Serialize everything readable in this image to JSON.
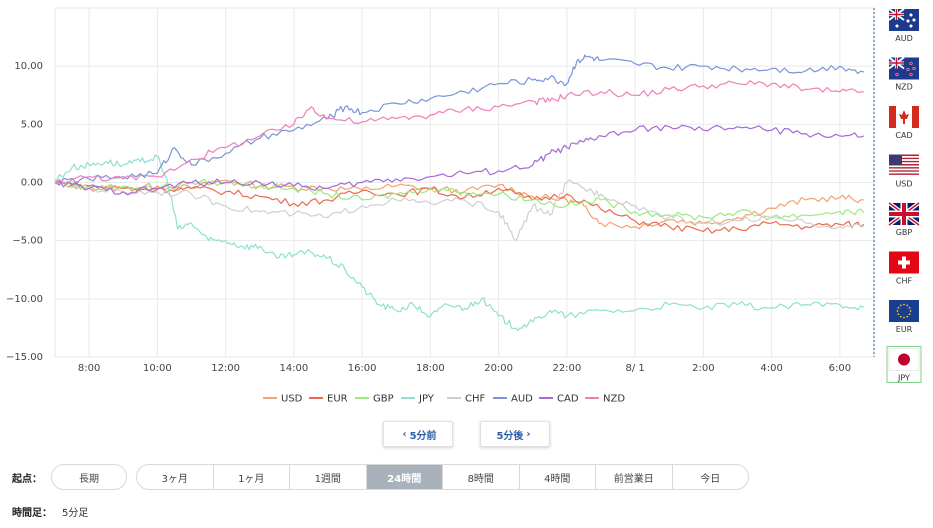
{
  "chart_data": {
    "type": "line",
    "ylim": [
      -15,
      15
    ],
    "yticks": [
      10,
      5,
      0,
      -5,
      -10,
      -15
    ],
    "ytick_labels": [
      "10.00",
      "5.00",
      "0.00",
      "−5.00",
      "−10.00",
      "−15.00"
    ],
    "xticks": [
      1,
      3,
      5,
      7,
      9,
      11,
      13,
      15,
      17,
      19,
      21,
      23
    ],
    "xtick_labels": [
      "8:00",
      "10:00",
      "12:00",
      "14:00",
      "16:00",
      "18:00",
      "20:00",
      "22:00",
      "8/ 1",
      "2:00",
      "4:00",
      "6:00"
    ],
    "xlim": [
      0,
      24
    ],
    "series": [
      {
        "name": "USD",
        "color": "#f4a26e",
        "x": [
          0,
          1,
          2,
          3,
          4,
          5,
          6,
          7,
          8,
          9,
          10,
          11,
          12,
          13,
          14,
          15,
          15.5,
          16,
          17,
          18,
          19,
          20,
          21,
          22,
          23,
          23.7
        ],
        "values": [
          0,
          -0.5,
          -0.5,
          -0.3,
          -0.5,
          0.2,
          -0.3,
          -0.4,
          -0.5,
          -0.6,
          -0.3,
          -0.5,
          -0.8,
          -0.2,
          -1.2,
          -1.5,
          -2,
          -3.5,
          -3.8,
          -3.2,
          -3.5,
          -3,
          -2.2,
          -1.5,
          -1.3,
          -1.5
        ]
      },
      {
        "name": "EUR",
        "color": "#e86a50",
        "x": [
          0,
          1,
          2,
          3,
          4,
          5,
          6,
          7,
          8,
          9,
          10,
          11,
          12,
          13,
          14,
          15,
          16,
          17,
          18,
          19,
          20,
          21,
          22,
          23,
          23.7
        ],
        "values": [
          0,
          -0.3,
          -0.5,
          -0.6,
          -0.5,
          -0.8,
          -1.2,
          -1.8,
          -1.5,
          -0.7,
          -1,
          -0.6,
          -1.3,
          -0.5,
          -1.5,
          -1,
          -2.3,
          -3.3,
          -3.8,
          -4.2,
          -4,
          -3.5,
          -3.8,
          -3.6,
          -3.6
        ]
      },
      {
        "name": "GBP",
        "color": "#9bea7d",
        "x": [
          0,
          1,
          2,
          3,
          4,
          5,
          6,
          7,
          8,
          9,
          10,
          11,
          12,
          13,
          14,
          15,
          16,
          17,
          18,
          19,
          20,
          21,
          22,
          23,
          23.7
        ],
        "values": [
          0,
          -0.5,
          -0.3,
          -0.5,
          0,
          0,
          -0.3,
          -0.5,
          -1,
          -1.5,
          -1,
          -0.5,
          -0.8,
          -1,
          -1.5,
          -2,
          -1.5,
          -2.5,
          -2.8,
          -3,
          -2.5,
          -3,
          -2.8,
          -2.5,
          -2.6
        ]
      },
      {
        "name": "JPY",
        "color": "#8ee0d2",
        "x": [
          0,
          0.5,
          1,
          1.5,
          2,
          2.5,
          3,
          3.3,
          3.6,
          4,
          4.5,
          5,
          5.5,
          6,
          6.5,
          7,
          7.5,
          8,
          8.5,
          9,
          9.5,
          10,
          10.5,
          11,
          11.5,
          12,
          12.5,
          13,
          13.5,
          14,
          14.5,
          15,
          16,
          17,
          18,
          19,
          20,
          21,
          22,
          23,
          23.7
        ],
        "values": [
          0.2,
          1.3,
          1.5,
          1.8,
          1.5,
          1.8,
          2.2,
          0,
          -4,
          -3.5,
          -5,
          -5,
          -5.5,
          -5.5,
          -6.5,
          -6.2,
          -6,
          -6.5,
          -7.5,
          -9,
          -10.5,
          -11,
          -10.5,
          -11.5,
          -10.5,
          -10.8,
          -10,
          -11.5,
          -12.5,
          -12,
          -11,
          -11.5,
          -11,
          -11,
          -10.5,
          -10.8,
          -10.5,
          -10.8,
          -10.5,
          -10.5,
          -10.7
        ]
      },
      {
        "name": "CHF",
        "color": "#cfcfcf",
        "x": [
          0,
          1,
          2,
          3,
          4,
          5,
          6,
          7,
          8,
          9,
          10,
          11,
          12,
          13,
          13.5,
          14,
          14.5,
          15,
          15.5,
          16,
          17,
          18,
          19,
          20,
          21,
          22,
          23,
          23.7
        ],
        "values": [
          0,
          -0.5,
          -0.8,
          -0.8,
          -1,
          -2,
          -2.5,
          -2.7,
          -3,
          -2,
          -1.5,
          -1.8,
          -1.5,
          -2.5,
          -5,
          -2,
          -2.8,
          0,
          -0.5,
          -1,
          -2,
          -3,
          -3.5,
          -3.3,
          -3,
          -3.5,
          -3.8,
          -3.8
        ]
      },
      {
        "name": "AUD",
        "color": "#7b94d8",
        "x": [
          0,
          1,
          2,
          3,
          3.5,
          4,
          5,
          6,
          7,
          8,
          8.5,
          9,
          10,
          11,
          12,
          13,
          14,
          14.5,
          15,
          15.3,
          15.6,
          16,
          17,
          18,
          19,
          20,
          21,
          22,
          23,
          23.7
        ],
        "values": [
          0,
          0.3,
          0.5,
          0.8,
          3,
          1.5,
          2.5,
          3.8,
          4.5,
          5.5,
          6.5,
          6,
          6.8,
          7.2,
          7.8,
          8.5,
          8.8,
          9,
          8.5,
          10.5,
          10.8,
          10.5,
          10.2,
          9.8,
          10,
          9.8,
          9.8,
          9.6,
          10,
          9.5
        ]
      },
      {
        "name": "CAD",
        "color": "#a56ad6",
        "x": [
          0,
          1,
          2,
          3,
          4,
          5,
          6,
          7,
          8,
          9,
          10,
          11,
          12,
          13,
          14,
          14.5,
          15,
          15.5,
          16,
          17,
          18,
          19,
          20,
          21,
          22,
          23,
          23.7
        ],
        "values": [
          0,
          -0.5,
          -0.8,
          -0.5,
          0,
          0,
          0,
          -0.3,
          -0.5,
          0,
          0.3,
          0.5,
          0.8,
          1,
          1.5,
          2.5,
          3,
          3.5,
          4,
          4.5,
          4.8,
          4.5,
          4.8,
          4.5,
          4.2,
          4,
          4
        ]
      },
      {
        "name": "NZD",
        "color": "#f07fb8",
        "x": [
          0,
          1,
          2,
          3,
          4,
          5,
          6,
          7,
          7.5,
          8,
          9,
          10,
          11,
          12,
          13,
          14,
          14.5,
          15,
          16,
          17,
          18,
          19,
          20,
          21,
          22,
          23,
          23.7
        ],
        "values": [
          0,
          0.5,
          0.3,
          0.5,
          2,
          3,
          4,
          5,
          6.5,
          5.5,
          5.2,
          5.5,
          5.8,
          6.3,
          6.5,
          7,
          7,
          7.5,
          7.8,
          7.5,
          8,
          8.3,
          8.5,
          8.5,
          8,
          7.8,
          7.8
        ]
      }
    ]
  },
  "flags": [
    {
      "code": "AUD",
      "label": "AUD"
    },
    {
      "code": "NZD",
      "label": "NZD"
    },
    {
      "code": "CAD",
      "label": "CAD"
    },
    {
      "code": "USD",
      "label": "USD"
    },
    {
      "code": "GBP",
      "label": "GBP"
    },
    {
      "code": "CHF",
      "label": "CHF"
    },
    {
      "code": "EUR",
      "label": "EUR"
    },
    {
      "code": "JPY",
      "label": "JPY"
    }
  ],
  "nav": {
    "prev_label": "5分前",
    "next_label": "5分後"
  },
  "start_label": "起点：",
  "long_term_label": "長期",
  "ranges": [
    {
      "label": "3ヶ月",
      "active": false
    },
    {
      "label": "1ヶ月",
      "active": false
    },
    {
      "label": "1週間",
      "active": false
    },
    {
      "label": "24時間",
      "active": true
    },
    {
      "label": "8時間",
      "active": false
    },
    {
      "label": "4時間",
      "active": false
    },
    {
      "label": "前営業日",
      "active": false
    },
    {
      "label": "今日",
      "active": false
    }
  ],
  "timeframe_label": "時間足：",
  "timeframe_value": "5分足"
}
